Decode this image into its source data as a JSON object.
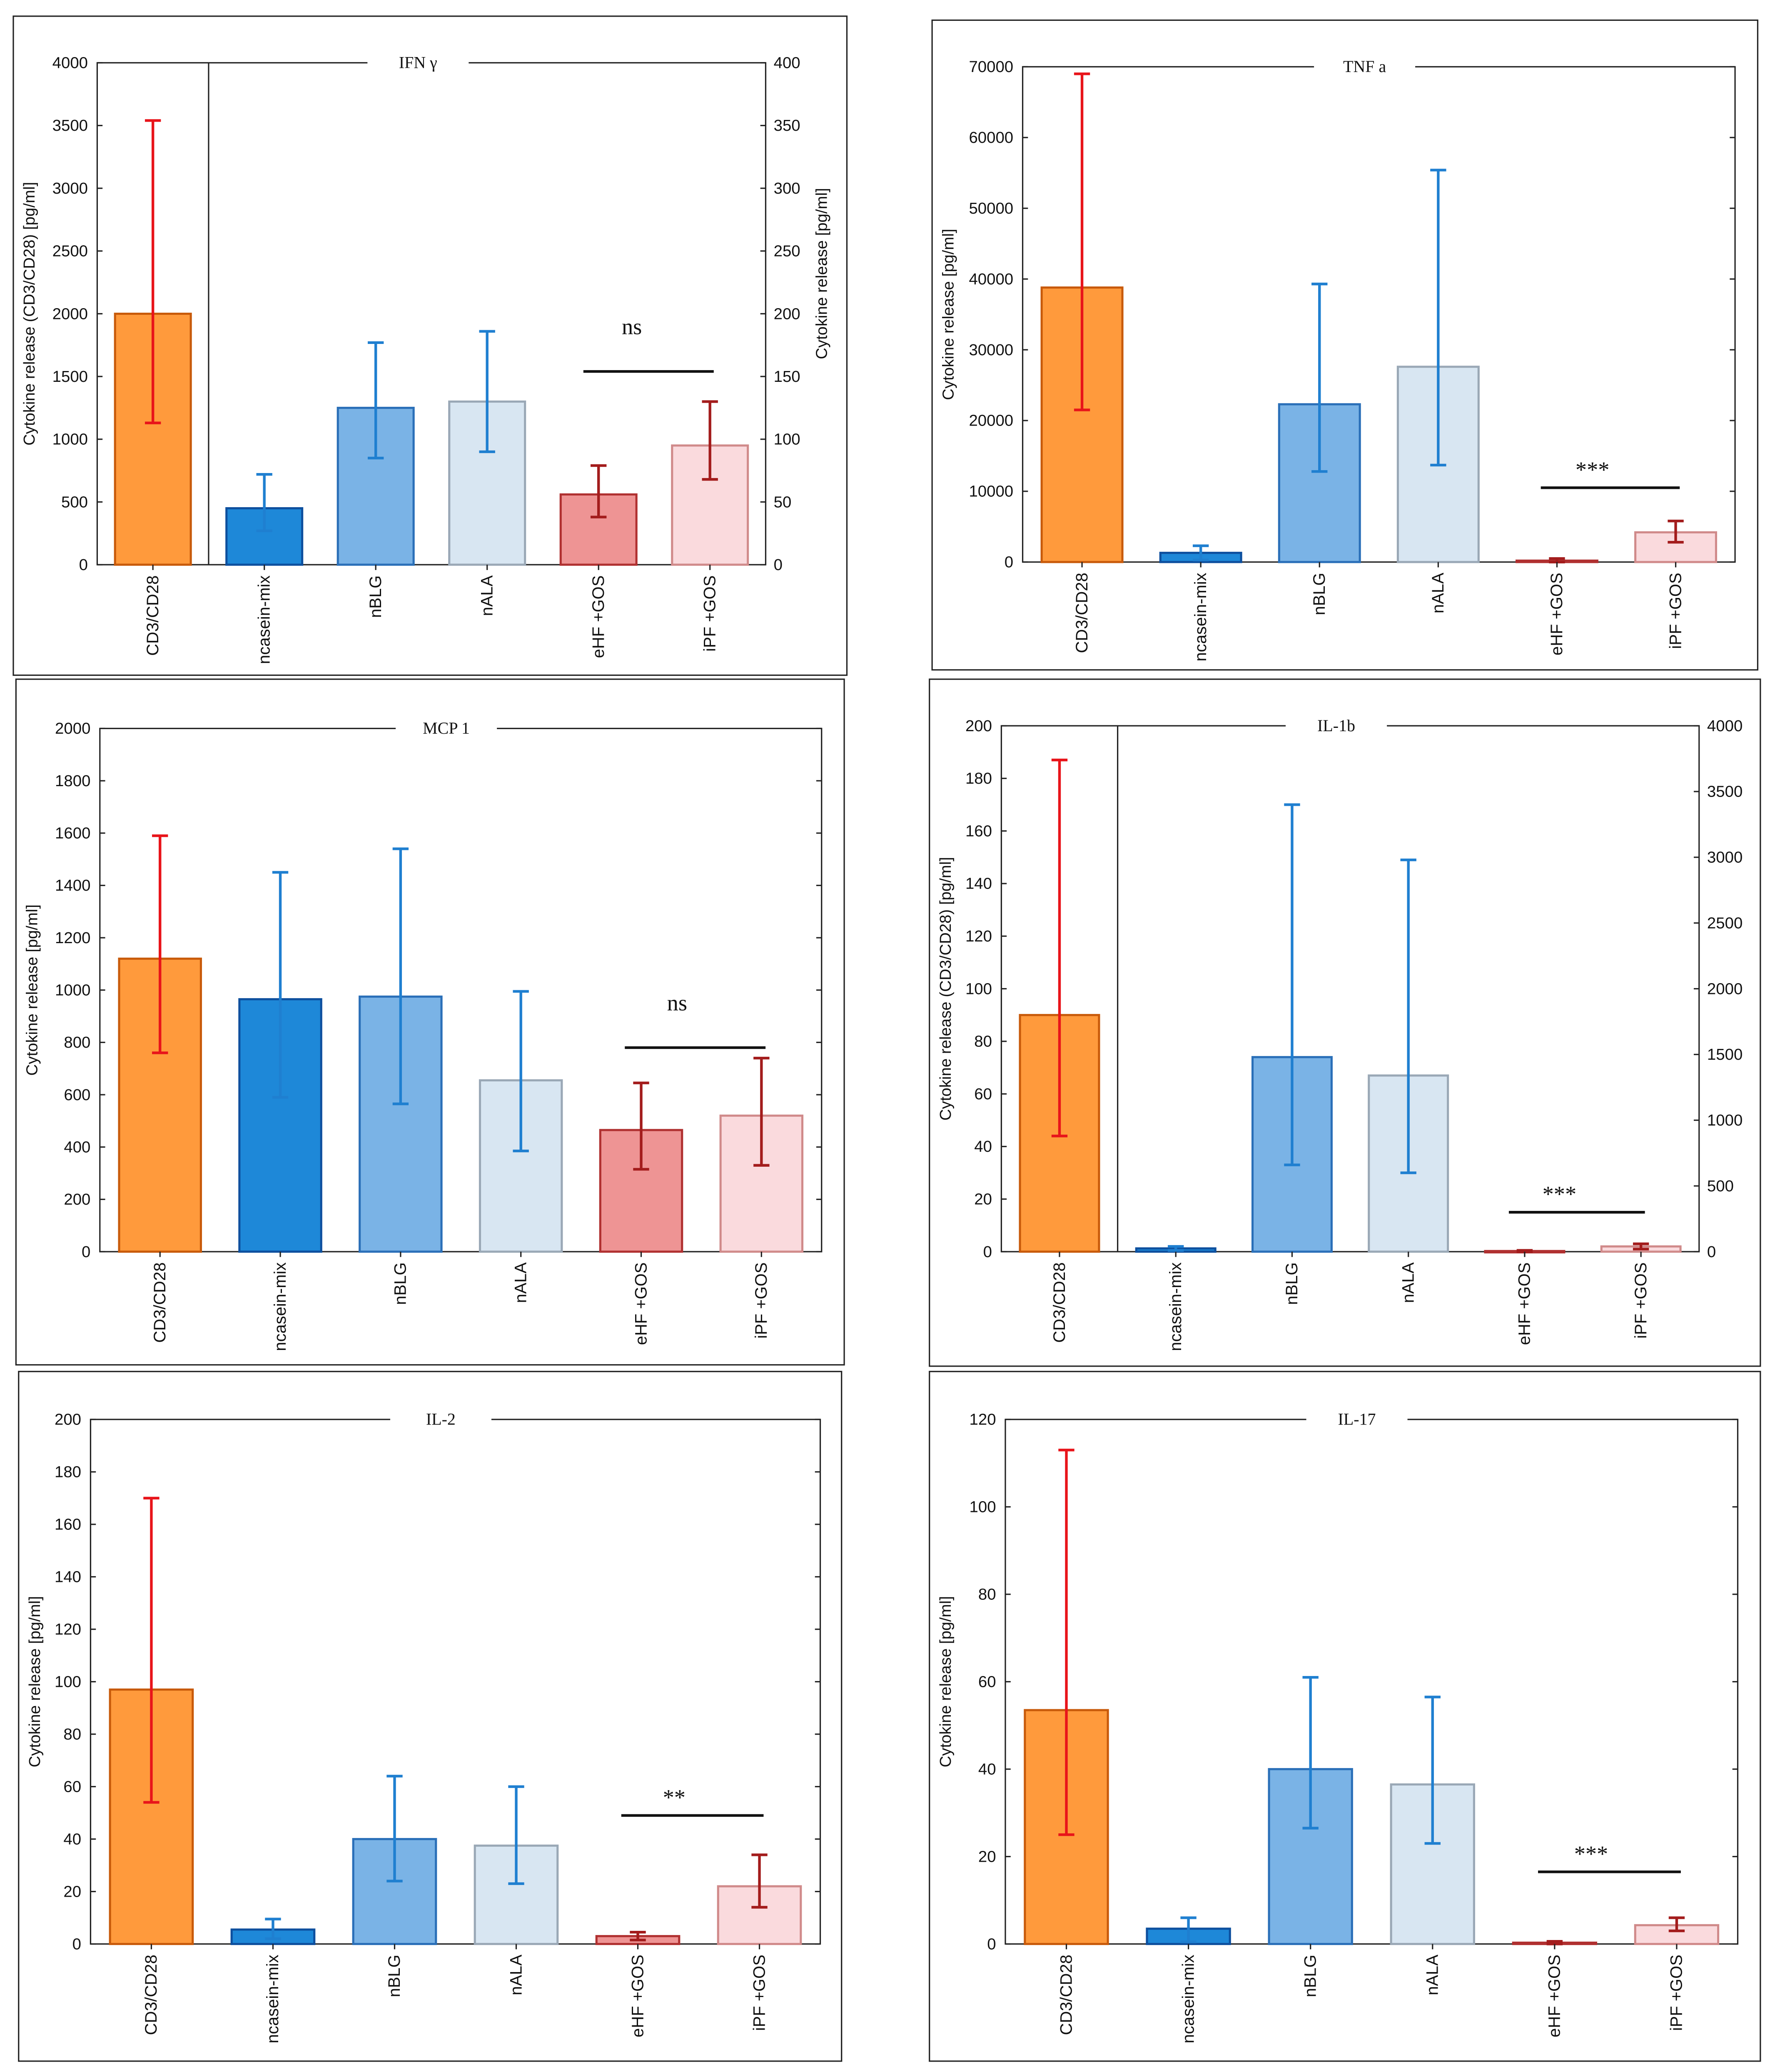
{
  "colors": {
    "CD3/CD28": {
      "fill": "#FF9A3C",
      "stroke": "#C85A0A",
      "err": "#E8141A"
    },
    "ncasein-mix": {
      "fill": "#1E88D8",
      "stroke": "#0D4F9E",
      "err": "#1F7FD0"
    },
    "nBLG": {
      "fill": "#7AB3E6",
      "stroke": "#2A6FB8",
      "err": "#1F7FD0"
    },
    "nALA": {
      "fill": "#D8E6F2",
      "stroke": "#9AA8B6",
      "err": "#1F7FD0"
    },
    "eHF +GOS": {
      "fill": "#EE9494",
      "stroke": "#B03030",
      "err": "#A31C1C"
    },
    "iPF +GOS": {
      "fill": "#FADADD",
      "stroke": "#D08A8A",
      "err": "#A31C1C"
    }
  },
  "chart_data": [
    {
      "type": "bar",
      "title": "IFN γ",
      "ylabel": "Cytokine release (CD3/CD28) [pg/ml]",
      "y2label": "Cytokine release [pg/ml]",
      "ylim": [
        0,
        4000
      ],
      "ystep": 500,
      "y2lim": [
        0,
        400
      ],
      "y2step": 50,
      "divider": true,
      "categories": [
        "CD3/CD28",
        "ncasein-mix",
        "nBLG",
        "nALA",
        "eHF +GOS",
        "iPF +GOS"
      ],
      "axis": [
        "left",
        "right",
        "right",
        "right",
        "right",
        "right"
      ],
      "values": [
        2000,
        45,
        125,
        130,
        56,
        95
      ],
      "err_low": [
        1130,
        27,
        85,
        90,
        38,
        68
      ],
      "err_high": [
        3540,
        72,
        177,
        186,
        79,
        130
      ],
      "significance": {
        "label": "ns",
        "from": 4,
        "to": 5,
        "y": 1540
      }
    },
    {
      "type": "bar",
      "title": "TNF a",
      "ylabel": "Cytokine release [pg/ml]",
      "ylim": [
        0,
        70000
      ],
      "ystep": 10000,
      "divider": false,
      "categories": [
        "CD3/CD28",
        "ncasein-mix",
        "nBLG",
        "nALA",
        "eHF +GOS",
        "iPF +GOS"
      ],
      "axis": [
        "left",
        "left",
        "left",
        "left",
        "left",
        "left"
      ],
      "values": [
        38800,
        1300,
        22300,
        27600,
        200,
        4200
      ],
      "err_low": [
        21500,
        300,
        12800,
        13700,
        0,
        2800
      ],
      "err_high": [
        69000,
        2300,
        39300,
        55400,
        500,
        5800
      ],
      "significance": {
        "label": "***",
        "from": 4,
        "to": 5,
        "y": 10500
      }
    },
    {
      "type": "bar",
      "title": "MCP 1",
      "ylabel": "Cytokine release [pg/ml]",
      "ylim": [
        0,
        2000
      ],
      "ystep": 200,
      "divider": false,
      "categories": [
        "CD3/CD28",
        "ncasein-mix",
        "nBLG",
        "nALA",
        "eHF +GOS",
        "iPF +GOS"
      ],
      "axis": [
        "left",
        "left",
        "left",
        "left",
        "left",
        "left"
      ],
      "values": [
        1120,
        965,
        975,
        655,
        465,
        520
      ],
      "err_low": [
        760,
        590,
        565,
        385,
        315,
        330
      ],
      "err_high": [
        1590,
        1450,
        1540,
        995,
        645,
        740
      ],
      "significance": {
        "label": "ns",
        "from": 4,
        "to": 5,
        "y": 780
      }
    },
    {
      "type": "bar",
      "title": "IL-1b",
      "ylabel": "Cytokine release (CD3/CD28) [pg/ml]",
      "y2label": "",
      "ylim": [
        0,
        200
      ],
      "ystep": 20,
      "y2lim": [
        0,
        4000
      ],
      "y2step": 500,
      "divider": true,
      "categories": [
        "CD3/CD28",
        "ncasein-mix",
        "nBLG",
        "nALA",
        "eHF +GOS",
        "iPF +GOS"
      ],
      "axis": [
        "left",
        "right",
        "right",
        "right",
        "right",
        "right"
      ],
      "values": [
        90,
        25,
        1480,
        1340,
        5,
        40
      ],
      "err_low": [
        44,
        10,
        660,
        600,
        0,
        20
      ],
      "err_high": [
        187,
        40,
        3400,
        2980,
        10,
        60
      ],
      "significance": {
        "label": "***",
        "from": 4,
        "to": 5,
        "y": 15
      }
    },
    {
      "type": "bar",
      "title": "IL-2",
      "ylabel": "Cytokine release [pg/ml]",
      "ylim": [
        0,
        200
      ],
      "ystep": 20,
      "divider": false,
      "categories": [
        "CD3/CD28",
        "ncasein-mix",
        "nBLG",
        "nALA",
        "eHF +GOS",
        "iPF +GOS"
      ],
      "axis": [
        "left",
        "left",
        "left",
        "left",
        "left",
        "left"
      ],
      "values": [
        97,
        5.5,
        40,
        37.5,
        3,
        22
      ],
      "err_low": [
        54,
        2,
        24,
        23,
        1.5,
        14
      ],
      "err_high": [
        170,
        9.5,
        64,
        60,
        4.5,
        34
      ],
      "significance": {
        "label": "**",
        "from": 4,
        "to": 5,
        "y": 49
      }
    },
    {
      "type": "bar",
      "title": "IL-17",
      "ylabel": "Cytokine release [pg/ml]",
      "ylim": [
        0,
        120
      ],
      "ystep": 20,
      "divider": false,
      "categories": [
        "CD3/CD28",
        "ncasein-mix",
        "nBLG",
        "nALA",
        "eHF +GOS",
        "iPF +GOS"
      ],
      "axis": [
        "left",
        "left",
        "left",
        "left",
        "left",
        "left"
      ],
      "values": [
        53.5,
        3.5,
        40,
        36.5,
        0.3,
        4.3
      ],
      "err_low": [
        25,
        0.5,
        26.5,
        23,
        0,
        3
      ],
      "err_high": [
        113,
        6,
        61,
        56.5,
        0.6,
        6
      ],
      "significance": {
        "label": "***",
        "from": 4,
        "to": 5,
        "y": 16.5
      }
    }
  ]
}
